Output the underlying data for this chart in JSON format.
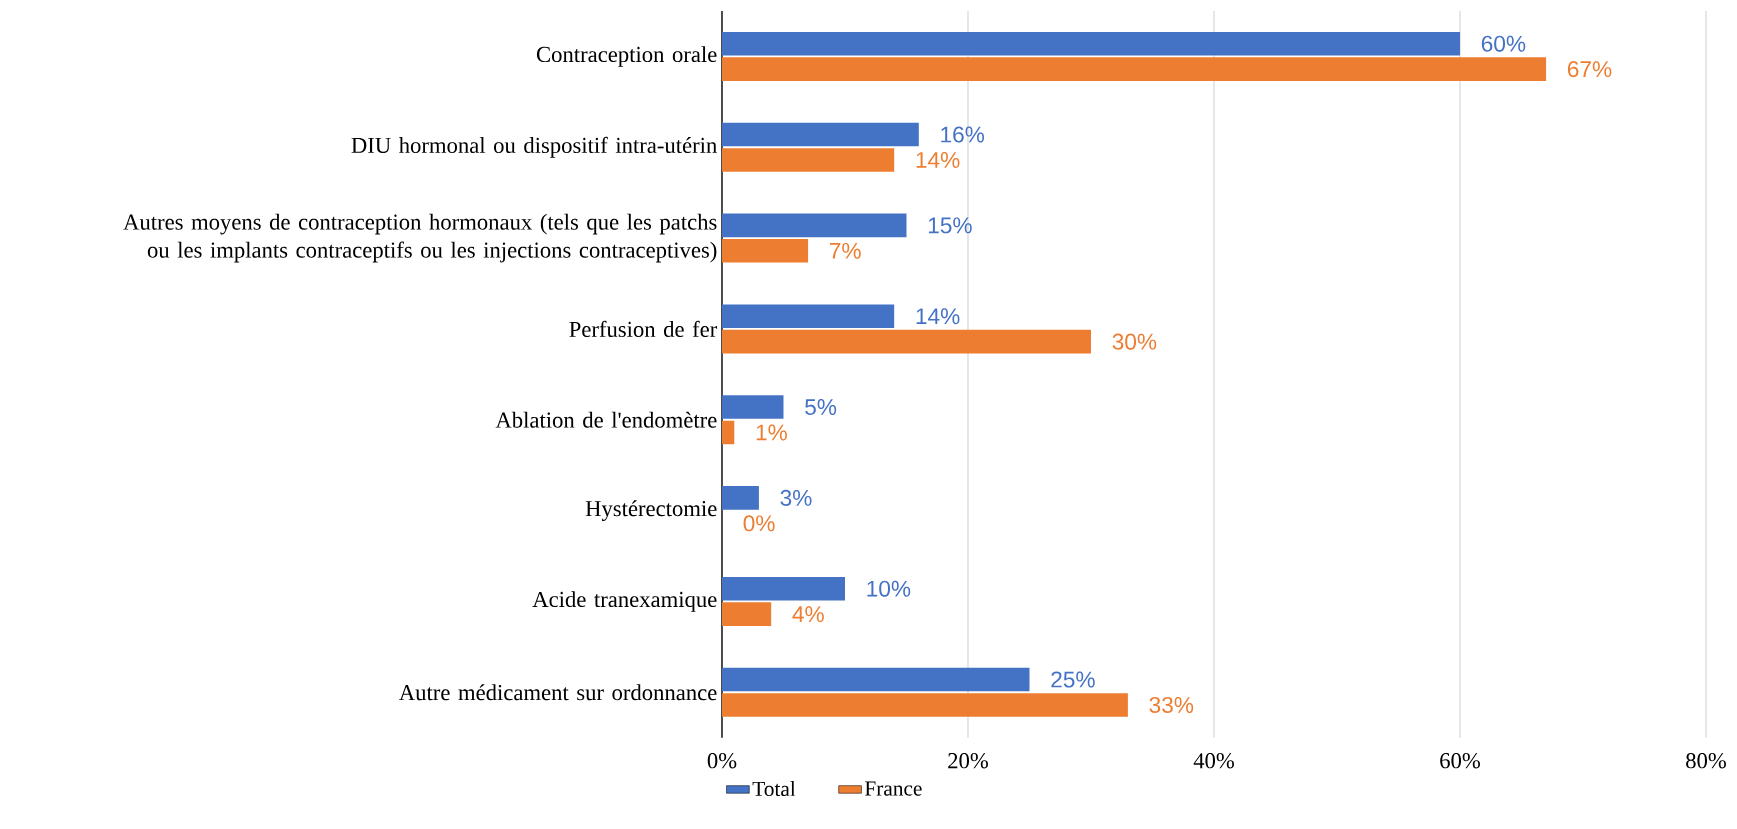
{
  "chart_data": {
    "type": "bar",
    "orientation": "horizontal",
    "categories": [
      "Contraception orale",
      "DIU hormonal ou dispositif intra-utérin",
      "Autres moyens de contraception hormonaux (tels que les patchs ou les implants contraceptifs ou les injections contraceptives)",
      "Perfusion de fer",
      "Ablation de l'endomètre",
      "Hystérectomie",
      "Acide tranexamique",
      "Autre médicament sur ordonnance"
    ],
    "series": [
      {
        "name": "Total",
        "color": "#4472c4",
        "values": [
          60,
          16,
          15,
          14,
          5,
          3,
          10,
          25
        ],
        "value_labels": [
          "60%",
          "16%",
          "15%",
          "14%",
          "5%",
          "3%",
          "10%",
          "25%"
        ]
      },
      {
        "name": "France",
        "color": "#ed7d31",
        "values": [
          67,
          14,
          7,
          30,
          1,
          0,
          4,
          33
        ],
        "value_labels": [
          "67%",
          "14%",
          "7%",
          "30%",
          "1%",
          "0%",
          "4%",
          "33%"
        ]
      }
    ],
    "xlim": [
      0,
      80
    ],
    "xticks": [
      {
        "value": 0,
        "label": "0%"
      },
      {
        "value": 20,
        "label": "20%"
      },
      {
        "value": 40,
        "label": "40%"
      },
      {
        "value": 60,
        "label": "60%"
      },
      {
        "value": 80,
        "label": "80%"
      }
    ],
    "grid": "x",
    "legend": "bottom"
  }
}
